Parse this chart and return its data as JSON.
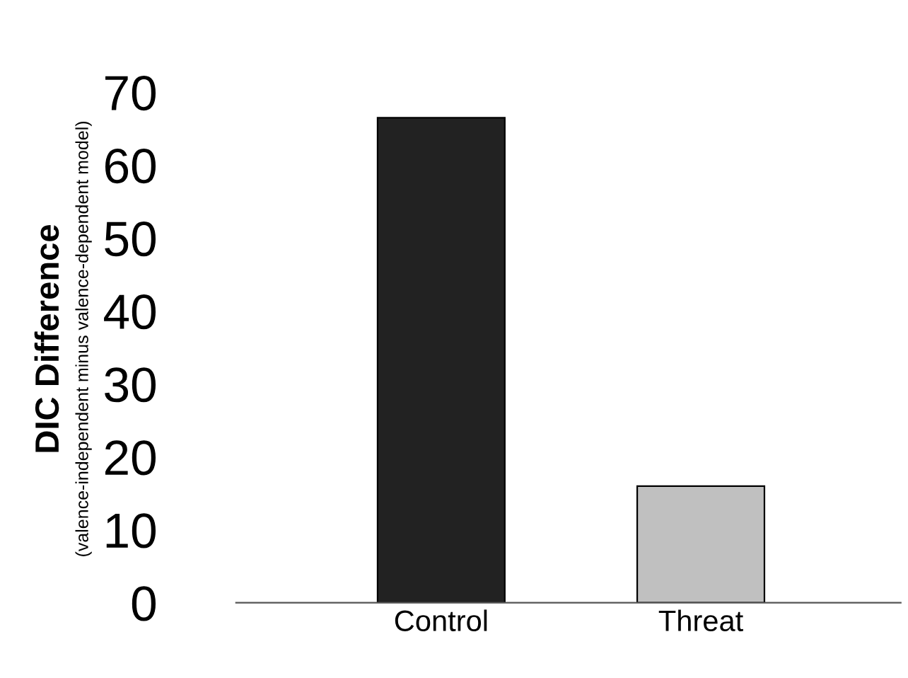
{
  "chart_data": {
    "type": "bar",
    "ylabel": "DIC Difference\n(valence-independent minus valence-dependent model)",
    "categories": [
      "Control",
      "Threat"
    ],
    "values": [
      66.5,
      16.0
    ],
    "colors": [
      "#222222",
      "#c0c0c0"
    ],
    "ylim": [
      0,
      70
    ],
    "yticks": [
      0,
      10,
      20,
      30,
      40,
      50,
      60,
      70
    ],
    "grid": false,
    "legend": false
  }
}
